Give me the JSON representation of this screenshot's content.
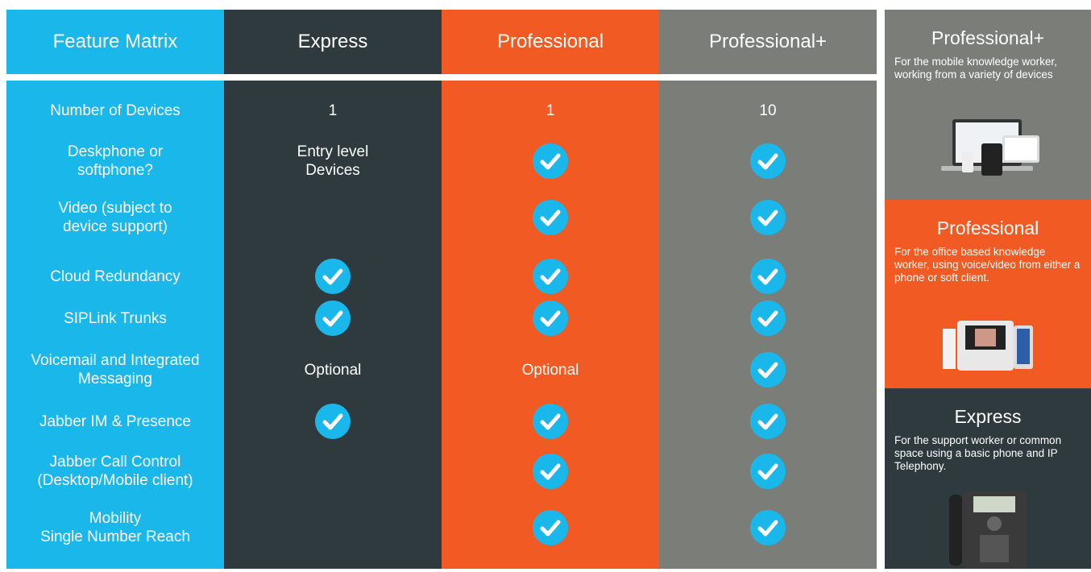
{
  "table": {
    "headers": [
      "Feature Matrix",
      "Express",
      "Professional",
      "Professional+"
    ],
    "rows": [
      {
        "label": "Number of Devices",
        "cells": [
          "1",
          "1",
          "10"
        ]
      },
      {
        "label": "Deskphone or\nsoftphone?",
        "cells": [
          "Entry level\nDevices",
          true,
          true
        ]
      },
      {
        "label": "Video (subject to\ndevice support)",
        "cells": [
          null,
          true,
          true
        ]
      },
      {
        "label": "Cloud Redundancy",
        "cells": [
          true,
          true,
          true
        ]
      },
      {
        "label": "SIPLink Trunks",
        "cells": [
          true,
          true,
          true
        ]
      },
      {
        "label": "Voicemail and Integrated\nMessaging",
        "cells": [
          "Optional",
          "Optional",
          true
        ]
      },
      {
        "label": "Jabber IM & Presence",
        "cells": [
          true,
          true,
          true
        ]
      },
      {
        "label": "Jabber Call Control\n(Desktop/Mobile client)",
        "cells": [
          null,
          true,
          true
        ]
      },
      {
        "label": "Mobility\nSingle Number Reach",
        "cells": [
          null,
          true,
          true
        ]
      }
    ]
  },
  "cards": [
    {
      "title": "Professional+",
      "description": "For the mobile knowledge worker, working from a variety of devices"
    },
    {
      "title": "Professional",
      "description": "For the office based knowledge worker, using voice/video from either a phone or soft client."
    },
    {
      "title": "Express",
      "description": "For the support worker or common space using a basic phone and IP Telephony."
    }
  ]
}
